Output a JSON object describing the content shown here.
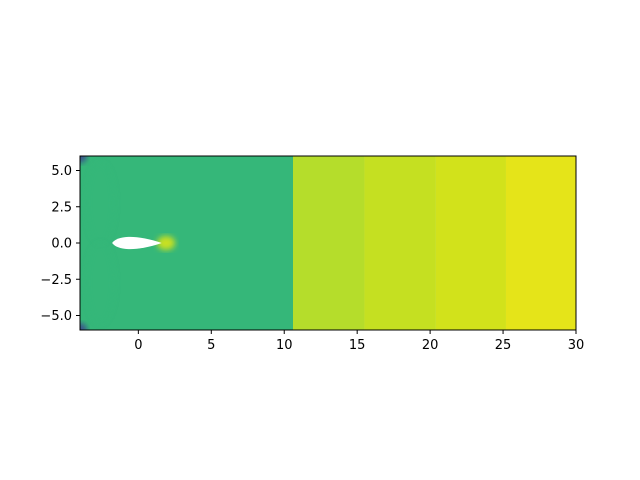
{
  "chart_data": {
    "type": "heatmap",
    "title": "",
    "xlabel": "",
    "ylabel": "",
    "xlim": [
      -4,
      30
    ],
    "ylim": [
      -6,
      6
    ],
    "x_ticks": [
      0,
      5,
      10,
      15,
      20,
      25,
      30
    ],
    "x_tick_labels": [
      "0",
      "5",
      "10",
      "15",
      "20",
      "25",
      "30"
    ],
    "y_ticks": [
      5.0,
      2.5,
      0.0,
      -2.5,
      -5.0
    ],
    "y_tick_labels": [
      "5.0",
      "2.5",
      "0.0",
      "−2.5",
      "−5.0"
    ],
    "colormap": "viridis",
    "bands": [
      {
        "x0": 10.6,
        "x1": 15.5,
        "color": "#b5dd2b"
      },
      {
        "x0": 15.5,
        "x1": 20.4,
        "color": "#c5e021"
      },
      {
        "x0": 20.4,
        "x1": 25.2,
        "color": "#d2e21b"
      },
      {
        "x0": 25.2,
        "x1": 30.0,
        "color": "#e5e419"
      }
    ],
    "near_field_levels": [
      {
        "x0": 5.8,
        "color": "#a0da39"
      },
      {
        "x0": 2.8,
        "color": "#8fd744"
      },
      {
        "x0": 1.6,
        "color": "#75d054"
      },
      {
        "x0": -0.8,
        "color": "#62cb5f"
      },
      {
        "x0": -2.2,
        "color": "#4ac16d"
      },
      {
        "x0": -4.0,
        "color": "#35b779"
      }
    ],
    "airfoil": {
      "x_lead": -1.8,
      "x_trail": 1.6,
      "half_thickness": 0.55,
      "fill": "#ffffff"
    },
    "wake_highlight": {
      "x": 1.9,
      "y": 0.0,
      "color": "#c8e020"
    },
    "corner_lows": [
      {
        "x": -4.0,
        "y": 6.0,
        "color": "#3b528b"
      },
      {
        "x": -4.0,
        "y": -6.0,
        "color": "#3b528b"
      }
    ]
  }
}
